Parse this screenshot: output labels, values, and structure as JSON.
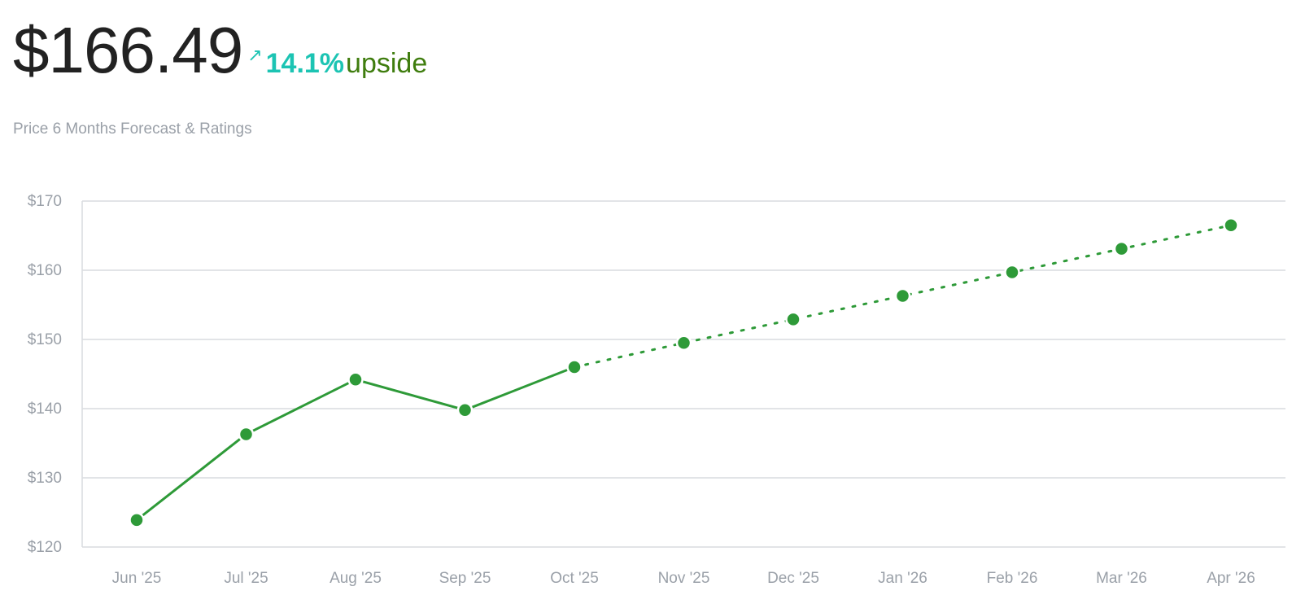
{
  "header": {
    "price": "$166.49",
    "change_arrow_icon": "arrow-up-right-icon",
    "change_percent": "14.1%",
    "change_label": "upside",
    "subtitle": "Price 6 Months Forecast & Ratings"
  },
  "colors": {
    "line": "#2e9a38",
    "accent": "#1cc4b3",
    "upside": "#3f7d0e",
    "grid": "#d9dcdf",
    "tick": "#9aa0a8"
  },
  "chart_data": {
    "type": "line",
    "categories": [
      "Jun '25",
      "Jul '25",
      "Aug '25",
      "Sep '25",
      "Oct '25",
      "Nov '25",
      "Dec '25",
      "Jan '26",
      "Feb '26",
      "Mar '26",
      "Apr '26"
    ],
    "series": [
      {
        "style": "solid",
        "values": [
          123.9,
          136.3,
          144.2,
          139.8,
          146.0,
          null,
          null,
          null,
          null,
          null,
          null
        ]
      },
      {
        "style": "dotted",
        "values": [
          null,
          null,
          null,
          null,
          146.0,
          149.5,
          152.9,
          156.3,
          159.7,
          163.1,
          166.5
        ]
      }
    ],
    "y_ticks": [
      "$170",
      "$160",
      "$150",
      "$140",
      "$130",
      "$120"
    ],
    "y_tick_values": [
      170,
      160,
      150,
      140,
      130,
      120
    ],
    "ylim": [
      120,
      170
    ],
    "grid": true,
    "legend": "none"
  }
}
